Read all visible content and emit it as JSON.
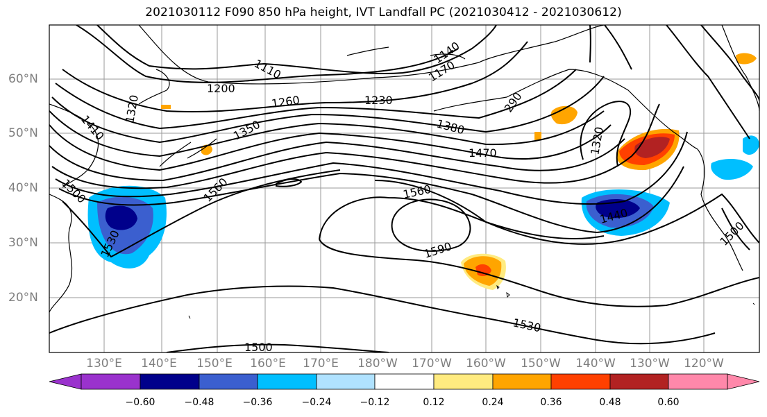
{
  "title": "2021030112 F090 850 hPa height, IVT Landfall PC (2021030412 - 2021030612)",
  "map": {
    "lon_labels": [
      "130°E",
      "140°E",
      "150°E",
      "160°E",
      "170°E",
      "180°W",
      "170°W",
      "160°W",
      "150°W",
      "140°W",
      "130°W",
      "120°W"
    ],
    "lat_labels": [
      "60°N",
      "50°N",
      "40°N",
      "30°N",
      "20°N"
    ],
    "contour_labels": [
      "1110",
      "1140",
      "1170",
      "1200",
      "1230",
      "1260",
      "1320",
      "1350",
      "1380",
      "1410",
      "1440",
      "1470",
      "1500",
      "1500",
      "1530",
      "1530",
      "1560",
      "1560",
      "1590",
      "290",
      "1320",
      "1500",
      "1560"
    ],
    "fill_colors": {
      "strong_positive": "#b22222",
      "positive_red": "#ff4000",
      "positive_orange": "#ffa500",
      "weak_positive": "#ffeb80",
      "strong_negative": "#00008b",
      "negative_blue": "#3b5fcf",
      "negative_cyan": "#00bfff"
    }
  },
  "colorbar": {
    "colors": [
      "#9a32cd",
      "#00008b",
      "#3b5fcf",
      "#00bfff",
      "#b0e2ff",
      "#ffffff",
      "#ffeb80",
      "#ffa500",
      "#ff4000",
      "#b22222",
      "#ff88aa"
    ],
    "ticks": [
      "−0.60",
      "−0.48",
      "−0.36",
      "−0.24",
      "−0.12",
      "0.12",
      "0.24",
      "0.36",
      "0.48",
      "0.60"
    ]
  }
}
